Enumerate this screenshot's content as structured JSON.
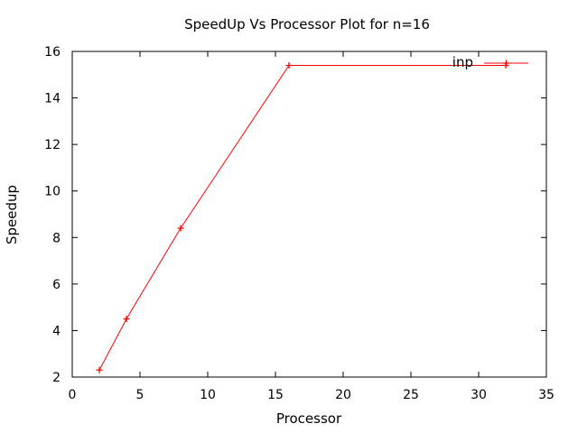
{
  "chart_data": {
    "type": "line",
    "title": "SpeedUp Vs Processor Plot for n=16",
    "xlabel": "Processor",
    "ylabel": "Speedup",
    "xlim": [
      0,
      35
    ],
    "ylim": [
      2,
      16
    ],
    "xticks": [
      0,
      5,
      10,
      15,
      20,
      25,
      30,
      35
    ],
    "yticks": [
      2,
      4,
      6,
      8,
      10,
      12,
      14,
      16
    ],
    "grid": false,
    "legend_position": "top-right",
    "series": [
      {
        "name": "inp",
        "color": "#ff0000",
        "marker": "plus",
        "x": [
          2,
          4,
          8,
          16,
          32
        ],
        "y": [
          2.3,
          4.5,
          8.4,
          15.4,
          15.4
        ]
      }
    ]
  }
}
